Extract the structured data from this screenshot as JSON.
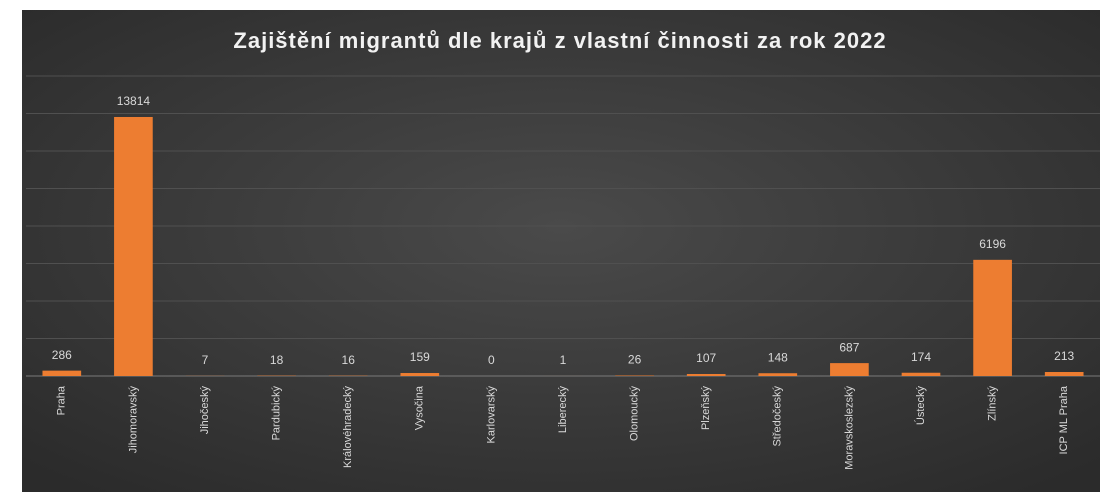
{
  "chart_data": {
    "type": "bar",
    "title": "Zajištění migrantů dle krajů z vlastní činnosti za rok 2022",
    "categories": [
      "Praha",
      "Jihomoravský",
      "Jihočeský",
      "Pardubický",
      "Královéhradecký",
      "Vysočina",
      "Karlovarský",
      "Liberecký",
      "Olomoucký",
      "Plzeňský",
      "Středočeský",
      "Moravskoslezský",
      "Ústecký",
      "Zlínský",
      "ICP ML Praha"
    ],
    "values": [
      286,
      13814,
      7,
      18,
      16,
      159,
      0,
      1,
      26,
      107,
      148,
      687,
      174,
      6196,
      213
    ],
    "color": "#ed7d31",
    "ylim": [
      0,
      16000
    ],
    "yticks": [
      0,
      2000,
      4000,
      6000,
      8000,
      10000,
      12000,
      14000,
      16000
    ],
    "grid": true
  }
}
